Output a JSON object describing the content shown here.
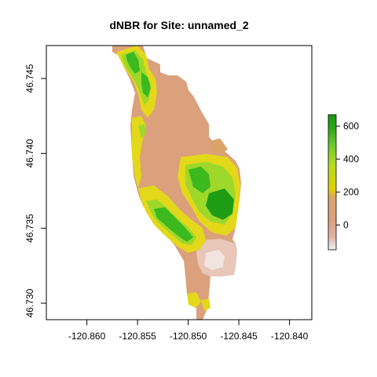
{
  "chart_data": {
    "type": "heatmap",
    "title": "dNBR for Site: unnamed_2",
    "xlabel": "",
    "ylabel": "",
    "xlim": [
      -120.864,
      -120.8378
    ],
    "ylim": [
      46.7289,
      46.7472
    ],
    "x_ticks": [
      -120.86,
      -120.855,
      -120.85,
      -120.845,
      -120.84
    ],
    "x_tick_labels": [
      "-120.860",
      "-120.855",
      "-120.850",
      "-120.845",
      "-120.840"
    ],
    "y_ticks": [
      46.73,
      46.735,
      46.74,
      46.745
    ],
    "y_tick_labels": [
      "46.730",
      "46.735",
      "46.740",
      "46.745"
    ],
    "legend": {
      "placement": "right",
      "range": [
        -150,
        670
      ],
      "ticks": [
        0,
        200,
        400,
        600
      ],
      "tick_labels": [
        "0",
        "200",
        "400",
        "600"
      ],
      "colors": [
        "#f2f2f2",
        "#e0b0a0",
        "#dba080",
        "#d9a46a",
        "#e0d000",
        "#b8dc20",
        "#6cc830",
        "#2aa615",
        "#1a9a10"
      ]
    },
    "colors": {
      "background": "#dba07c",
      "light": "#e8c6b8",
      "yellow": "#e3d81a",
      "lightgreen": "#9ed82a",
      "green": "#3cb91f",
      "darkgreen": "#1e9d14"
    }
  }
}
